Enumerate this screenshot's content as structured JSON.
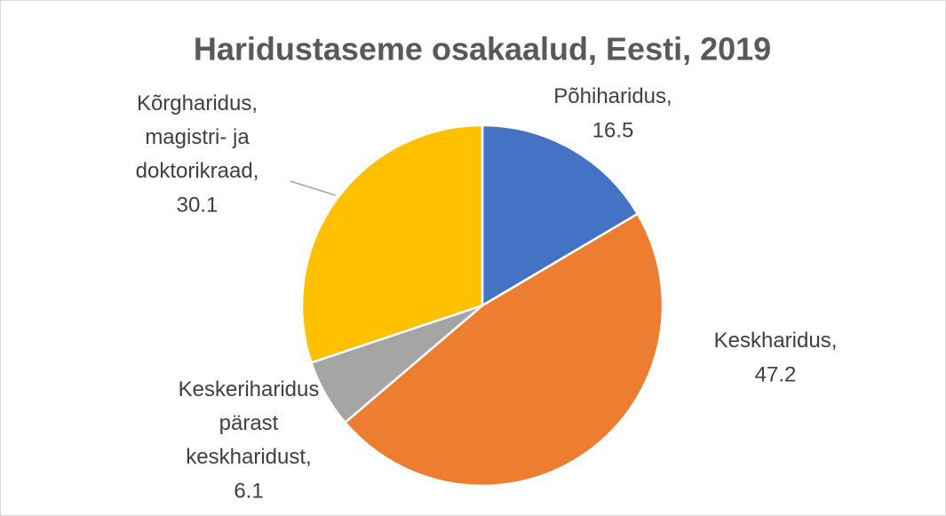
{
  "chart_data": {
    "type": "pie",
    "title": "Haridustaseme osakaalud, Eesti, 2019",
    "categories": [
      "Põhiharidus",
      "Keskharidus",
      "Keskeriharidus pärast keskharidust",
      "Kõrgharidus, magistri- ja doktorikraad"
    ],
    "values": [
      16.5,
      47.2,
      6.1,
      30.1
    ],
    "colors": [
      "#4472c4",
      "#ed7d31",
      "#a5a5a5",
      "#ffc000"
    ],
    "label_separator": ","
  }
}
